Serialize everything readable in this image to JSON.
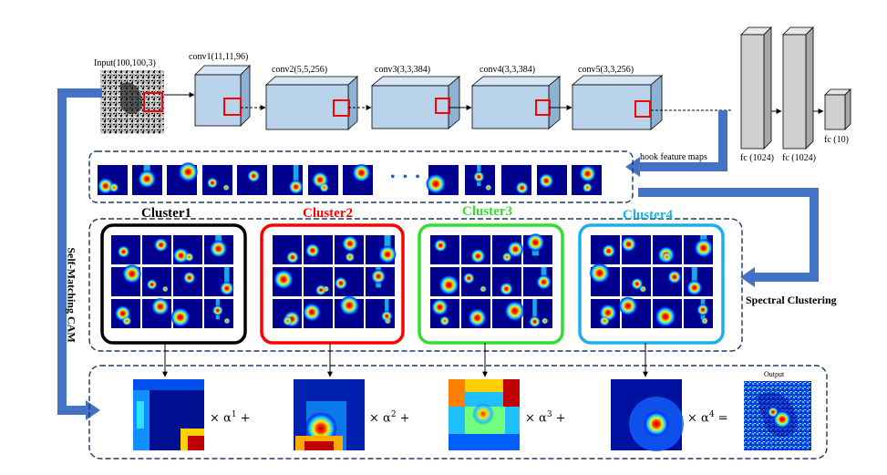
{
  "input_label": "Input(100,100,3)",
  "conv_layers": [
    {
      "label": "conv1(11,11,96)"
    },
    {
      "label": "conv2(5,5,256)"
    },
    {
      "label": "conv3(3,3,384)"
    },
    {
      "label": "conv4(3,3,384)"
    },
    {
      "label": "conv5(3,3,256)"
    }
  ],
  "fc_layers": [
    {
      "label": "fc (1024)"
    },
    {
      "label": "fc (1024)"
    },
    {
      "label": "fc (10)"
    }
  ],
  "hook_label": "hook feature  maps",
  "ellipsis": "• • •",
  "spectral_label": "Spectral Clustering",
  "side_label": "Self-Matching CAM",
  "clusters": [
    {
      "title": "Cluster1",
      "color": "#000000"
    },
    {
      "title": "Cluster2",
      "color": "#ff0000"
    },
    {
      "title": "Cluster3",
      "color": "#33dd33"
    },
    {
      "title": "Cluster4",
      "color": "#1ab0e8"
    }
  ],
  "weights": [
    {
      "base": "× α",
      "exp": "1",
      "op": " +"
    },
    {
      "base": "× α",
      "exp": "2",
      "op": " +"
    },
    {
      "base": "× α",
      "exp": "3",
      "op": " +"
    },
    {
      "base": "× α",
      "exp": "4",
      "op": " ="
    }
  ],
  "output_label": "Output",
  "colors": {
    "arrow_blue": "#4472c4",
    "dashed_border": "#1f3864",
    "block_face": "#b8d3ea",
    "block_side": "#8eb2d4",
    "block_top": "#d6e6f4",
    "fc_face": "#d0d0d0",
    "heat_bg": "#00008f",
    "highlight_red": "#ff0000"
  }
}
